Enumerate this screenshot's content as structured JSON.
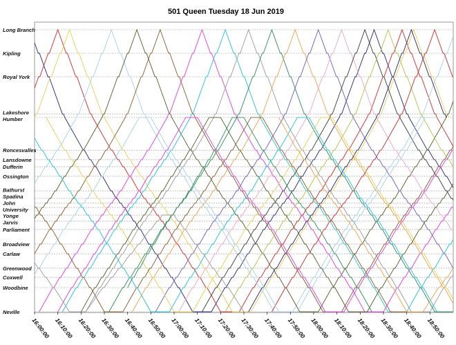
{
  "chart_data": {
    "type": "line",
    "title": "501 Queen  Tuesday  18 Jun 2019",
    "xlabel": "",
    "ylabel": "",
    "xlim": [
      "16:00",
      "19:00"
    ],
    "x_ticks": [
      "16:00:00",
      "16:10:00",
      "16:20:00",
      "16:30:00",
      "16:40:00",
      "16:50:00",
      "17:00:00",
      "17:10:00",
      "17:20:00",
      "17:30:00",
      "17:40:00",
      "17:50:00",
      "18:00:00",
      "18:10:00",
      "18:20:00",
      "18:30:00",
      "18:40:00",
      "18:50:00"
    ],
    "grid": "dashed horizontal line at each station",
    "stations": [
      {
        "name": "Long Branch",
        "km": 24.6
      },
      {
        "name": "Kipling",
        "km": 22.55
      },
      {
        "name": "Royal York",
        "km": 20.5
      },
      {
        "name": "Lakeshore",
        "km": 17.25
      },
      {
        "name": "Humber",
        "km": 16.95
      },
      {
        "name": "Roncesvalles",
        "km": 14.1
      },
      {
        "name": "Lansdowne",
        "km": 13.27
      },
      {
        "name": "Dufferin",
        "km": 12.66
      },
      {
        "name": "Ossington",
        "km": 11.82
      },
      {
        "name": "Bathurst",
        "km": 10.55
      },
      {
        "name": "Spadina",
        "km": 9.89
      },
      {
        "name": "John",
        "km": 9.47
      },
      {
        "name": "University",
        "km": 9.1
      },
      {
        "name": "Yonge",
        "km": 8.44
      },
      {
        "name": "Jarvis",
        "km": 7.9
      },
      {
        "name": "Parliament",
        "km": 7.18
      },
      {
        "name": "Broadview",
        "km": 5.91
      },
      {
        "name": "Carlaw",
        "km": 5.06
      },
      {
        "name": "Greenwood",
        "km": 3.8
      },
      {
        "name": "Coxwell",
        "km": 3.01
      },
      {
        "name": "Woodbine",
        "km": 2.11
      },
      {
        "name": "Neville",
        "km": 0
      }
    ],
    "colors": [
      "#23237e",
      "#d62728",
      "#e8cf55",
      "#a9cfe6",
      "#4f5e2a",
      "#8b5a2b",
      "#e23be2",
      "#1fc3d6",
      "#9a9a9a",
      "#2e8b57",
      "#f0a050",
      "#6a5acd",
      "#f5a3c0",
      "#3a3a3a",
      "#b0c24a"
    ],
    "trips": [
      [
        [
          "14:48",
          "Neville"
        ],
        [
          "15:43",
          "Humber"
        ],
        [
          "15:58",
          "Long Branch"
        ],
        [
          "16:13",
          "Humber"
        ],
        [
          "17:08",
          "Neville"
        ],
        [
          "17:16",
          "Neville"
        ],
        [
          "18:11",
          "Humber"
        ],
        [
          "18:26",
          "Long Branch"
        ],
        [
          "18:41",
          "Humber"
        ],
        [
          "19:36",
          "Neville"
        ]
      ],
      [
        [
          "15:00",
          "Neville"
        ],
        [
          "15:55",
          "Humber"
        ],
        [
          "16:10",
          "Long Branch"
        ],
        [
          "16:25",
          "Humber"
        ],
        [
          "17:20",
          "Neville"
        ],
        [
          "17:28",
          "Neville"
        ],
        [
          "18:23",
          "Humber"
        ],
        [
          "18:38",
          "Long Branch"
        ],
        [
          "18:53",
          "Humber"
        ],
        [
          "19:48",
          "Neville"
        ]
      ],
      [
        [
          "15:05",
          "Neville"
        ],
        [
          "16:00",
          "Humber"
        ],
        [
          "16:15",
          "Long Branch"
        ],
        [
          "16:30",
          "Humber"
        ],
        [
          "17:25",
          "Neville"
        ],
        [
          "17:33",
          "Neville"
        ],
        [
          "18:28",
          "Humber"
        ],
        [
          "18:43",
          "Long Branch"
        ],
        [
          "18:58",
          "Humber"
        ]
      ],
      [
        [
          "15:23",
          "Neville"
        ],
        [
          "16:18",
          "Humber"
        ],
        [
          "16:33",
          "Long Branch"
        ],
        [
          "16:48",
          "Humber"
        ],
        [
          "17:43",
          "Neville"
        ],
        [
          "17:51",
          "Neville"
        ],
        [
          "18:46",
          "Humber"
        ],
        [
          "19:01",
          "Long Branch"
        ]
      ],
      [
        [
          "15:34",
          "Neville"
        ],
        [
          "16:29",
          "Humber"
        ],
        [
          "16:44",
          "Long Branch"
        ],
        [
          "16:59",
          "Humber"
        ],
        [
          "17:54",
          "Neville"
        ],
        [
          "18:02",
          "Neville"
        ],
        [
          "18:57",
          "Humber"
        ],
        [
          "19:12",
          "Long Branch"
        ]
      ],
      [
        [
          "15:44",
          "Neville"
        ],
        [
          "16:39",
          "Humber"
        ],
        [
          "16:54",
          "Long Branch"
        ],
        [
          "17:09",
          "Humber"
        ],
        [
          "18:04",
          "Neville"
        ],
        [
          "18:12",
          "Neville"
        ],
        [
          "19:07",
          "Humber"
        ]
      ],
      [
        [
          "16:02",
          "Neville"
        ],
        [
          "16:57",
          "Humber"
        ],
        [
          "17:12",
          "Long Branch"
        ],
        [
          "17:27",
          "Humber"
        ],
        [
          "18:22",
          "Neville"
        ],
        [
          "18:30",
          "Neville"
        ],
        [
          "19:25",
          "Humber"
        ]
      ],
      [
        [
          "16:12",
          "Neville"
        ],
        [
          "17:07",
          "Humber"
        ],
        [
          "17:22",
          "Long Branch"
        ],
        [
          "17:37",
          "Humber"
        ],
        [
          "18:32",
          "Neville"
        ],
        [
          "18:40",
          "Neville"
        ],
        [
          "19:35",
          "Humber"
        ]
      ],
      [
        [
          "16:22",
          "Neville"
        ],
        [
          "17:17",
          "Humber"
        ],
        [
          "17:32",
          "Long Branch"
        ],
        [
          "17:47",
          "Humber"
        ],
        [
          "18:42",
          "Neville"
        ],
        [
          "18:50",
          "Neville"
        ],
        [
          "19:45",
          "Humber"
        ]
      ],
      [
        [
          "16:32",
          "Neville"
        ],
        [
          "17:27",
          "Humber"
        ],
        [
          "17:42",
          "Long Branch"
        ],
        [
          "17:57",
          "Humber"
        ],
        [
          "18:52",
          "Neville"
        ],
        [
          "19:00",
          "Neville"
        ]
      ],
      [
        [
          "16:42",
          "Neville"
        ],
        [
          "17:37",
          "Humber"
        ],
        [
          "17:52",
          "Long Branch"
        ],
        [
          "18:07",
          "Humber"
        ],
        [
          "19:02",
          "Neville"
        ]
      ],
      [
        [
          "16:52",
          "Neville"
        ],
        [
          "17:47",
          "Humber"
        ],
        [
          "18:02",
          "Long Branch"
        ],
        [
          "18:17",
          "Humber"
        ],
        [
          "19:12",
          "Neville"
        ]
      ],
      [
        [
          "17:02",
          "Neville"
        ],
        [
          "17:57",
          "Humber"
        ],
        [
          "18:12",
          "Long Branch"
        ],
        [
          "18:27",
          "Humber"
        ],
        [
          "19:22",
          "Neville"
        ]
      ],
      [
        [
          "17:12",
          "Neville"
        ],
        [
          "18:07",
          "Humber"
        ],
        [
          "18:22",
          "Long Branch"
        ],
        [
          "18:37",
          "Humber"
        ],
        [
          "19:32",
          "Neville"
        ]
      ],
      [
        [
          "17:22",
          "Neville"
        ],
        [
          "18:17",
          "Humber"
        ],
        [
          "18:32",
          "Long Branch"
        ],
        [
          "18:47",
          "Humber"
        ],
        [
          "19:42",
          "Neville"
        ]
      ],
      [
        [
          "17:32",
          "Neville"
        ],
        [
          "18:27",
          "Humber"
        ],
        [
          "18:42",
          "Long Branch"
        ],
        [
          "18:57",
          "Humber"
        ]
      ],
      [
        [
          "17:42",
          "Neville"
        ],
        [
          "18:37",
          "Humber"
        ],
        [
          "18:52",
          "Long Branch"
        ],
        [
          "19:07",
          "Humber"
        ]
      ],
      [
        [
          "16:05",
          "Humber"
        ],
        [
          "17:00",
          "Neville"
        ],
        [
          "17:08",
          "Neville"
        ],
        [
          "18:03",
          "Humber"
        ],
        [
          "18:08",
          "Humber"
        ],
        [
          "19:03",
          "Neville"
        ]
      ],
      [
        [
          "15:50",
          "Neville"
        ],
        [
          "16:45",
          "Humber"
        ],
        [
          "16:50",
          "Humber"
        ],
        [
          "17:45",
          "Neville"
        ],
        [
          "17:53",
          "Neville"
        ],
        [
          "18:48",
          "Humber"
        ],
        [
          "18:53",
          "Humber"
        ]
      ],
      [
        [
          "16:20",
          "Neville"
        ],
        [
          "17:15",
          "Humber"
        ],
        [
          "17:20",
          "Humber"
        ],
        [
          "18:15",
          "Neville"
        ],
        [
          "18:23",
          "Neville"
        ],
        [
          "19:18",
          "Humber"
        ]
      ],
      [
        [
          "15:35",
          "Humber"
        ],
        [
          "16:30",
          "Neville"
        ],
        [
          "16:38",
          "Neville"
        ],
        [
          "17:33",
          "Humber"
        ],
        [
          "17:38",
          "Humber"
        ],
        [
          "18:33",
          "Neville"
        ],
        [
          "18:41",
          "Neville"
        ]
      ],
      [
        [
          "16:10",
          "Neville"
        ],
        [
          "17:05",
          "Humber"
        ],
        [
          "17:10",
          "Humber"
        ],
        [
          "18:05",
          "Neville"
        ],
        [
          "18:13",
          "Neville"
        ],
        [
          "19:08",
          "Humber"
        ]
      ],
      [
        [
          "15:55",
          "Humber"
        ],
        [
          "16:50",
          "Neville"
        ],
        [
          "16:58",
          "Neville"
        ],
        [
          "17:53",
          "Humber"
        ],
        [
          "17:58",
          "Humber"
        ],
        [
          "18:53",
          "Neville"
        ]
      ],
      [
        [
          "15:45",
          "Yonge"
        ],
        [
          "16:15",
          "Neville"
        ],
        [
          "16:22",
          "Neville"
        ],
        [
          "16:55",
          "Yonge"
        ],
        [
          "17:00",
          "Yonge"
        ],
        [
          "17:30",
          "Neville"
        ]
      ],
      [
        [
          "16:40",
          "Woodbine"
        ],
        [
          "17:25",
          "Humber"
        ],
        [
          "17:30",
          "Humber"
        ],
        [
          "18:25",
          "Neville"
        ]
      ],
      [
        [
          "17:45",
          "Humber"
        ],
        [
          "18:40",
          "Neville"
        ],
        [
          "18:47",
          "Neville"
        ],
        [
          "19:00",
          "Greenwood"
        ]
      ]
    ]
  }
}
